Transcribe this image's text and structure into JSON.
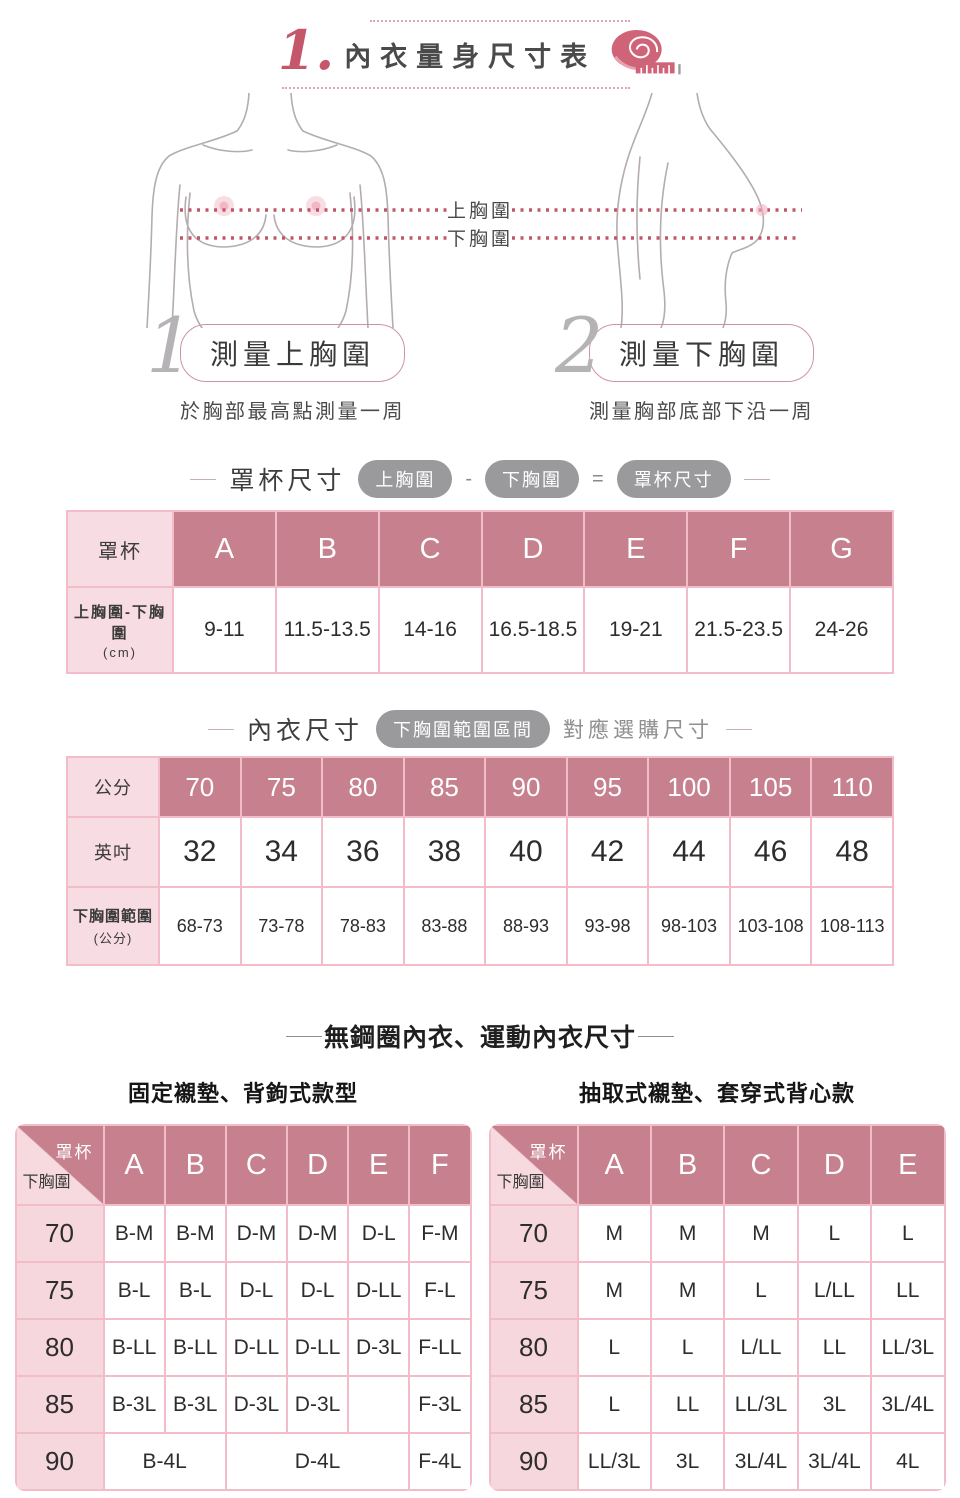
{
  "colors": {
    "mauve": "#c7808e",
    "light_pink": "#f8dce3",
    "band_pink": "#f7d7de",
    "border_pink": "#f2bdc8",
    "accent_red": "#c4586a",
    "pill_gray": "#9a999c",
    "dot_line_red": "#c25669",
    "sketch_gray": "#b4acb0"
  },
  "header": {
    "number": "1.",
    "title": "內衣量身尺寸表",
    "icon": "measuring-tape-icon"
  },
  "figure": {
    "upper_label": "上胸圍",
    "under_label": "下胸圍"
  },
  "steps": [
    {
      "number": "1",
      "title": "測量上胸圍",
      "desc": "於胸部最高點測量一周"
    },
    {
      "number": "2",
      "title": "測量下胸圍",
      "desc": "測量胸部底部下沿一周"
    }
  ],
  "cup_section": {
    "label": "罩杯尺寸",
    "pill_upper": "上胸圍",
    "minus": "-",
    "pill_under": "下胸圍",
    "equals": "=",
    "pill_result": "罩杯尺寸"
  },
  "cup_table": {
    "corner": "罩杯",
    "range_label": "上胸圍-下胸圍",
    "range_unit": "(cm)",
    "columns": [
      "A",
      "B",
      "C",
      "D",
      "E",
      "F",
      "G"
    ],
    "values": [
      "9-11",
      "11.5-13.5",
      "14-16",
      "16.5-18.5",
      "19-21",
      "21.5-23.5",
      "24-26"
    ]
  },
  "size_section": {
    "label": "內衣尺寸",
    "pill": "下胸圍範圍區間",
    "suffix": "對應選購尺寸"
  },
  "size_table": {
    "cm_label": "公分",
    "cm": [
      "70",
      "75",
      "80",
      "85",
      "90",
      "95",
      "100",
      "105",
      "110"
    ],
    "inch_label": "英吋",
    "inch": [
      "32",
      "34",
      "36",
      "38",
      "40",
      "42",
      "44",
      "46",
      "48"
    ],
    "range_label": "下胸圍範圍",
    "range_unit": "(公分)",
    "ranges": [
      "68-73",
      "73-78",
      "78-83",
      "83-88",
      "88-93",
      "93-98",
      "98-103",
      "103-108",
      "108-113"
    ]
  },
  "bottom": {
    "heading": "無鋼圈內衣、運動內衣尺寸",
    "tables": [
      {
        "caption": "固定襯墊、背鉤式款型",
        "corner_top": "罩杯",
        "corner_bottom": "下胸圍",
        "columns": [
          "A",
          "B",
          "C",
          "D",
          "E",
          "F"
        ],
        "rows": [
          {
            "band": "70",
            "cells": [
              {
                "t": "B-M"
              },
              {
                "t": "B-M"
              },
              {
                "t": "D-M"
              },
              {
                "t": "D-M"
              },
              {
                "t": "D-L"
              },
              {
                "t": "F-M"
              }
            ]
          },
          {
            "band": "75",
            "cells": [
              {
                "t": "B-L"
              },
              {
                "t": "B-L"
              },
              {
                "t": "D-L"
              },
              {
                "t": "D-L"
              },
              {
                "t": "D-LL"
              },
              {
                "t": "F-L"
              }
            ]
          },
          {
            "band": "80",
            "cells": [
              {
                "t": "B-LL"
              },
              {
                "t": "B-LL"
              },
              {
                "t": "D-LL"
              },
              {
                "t": "D-LL"
              },
              {
                "t": "D-3L"
              },
              {
                "t": "F-LL"
              }
            ]
          },
          {
            "band": "85",
            "cells": [
              {
                "t": "B-3L"
              },
              {
                "t": "B-3L"
              },
              {
                "t": "D-3L"
              },
              {
                "t": "D-3L"
              },
              {
                "t": ""
              },
              {
                "t": "F-3L"
              }
            ]
          },
          {
            "band": "90",
            "cells": [
              {
                "t": "B-4L",
                "span": 2
              },
              {
                "t": "D-4L",
                "span": 3
              },
              {
                "t": "F-4L"
              }
            ]
          }
        ]
      },
      {
        "caption": "抽取式襯墊、套穿式背心款",
        "corner_top": "罩杯",
        "corner_bottom": "下胸圍",
        "columns": [
          "A",
          "B",
          "C",
          "D",
          "E"
        ],
        "rows": [
          {
            "band": "70",
            "cells": [
              {
                "t": "M"
              },
              {
                "t": "M"
              },
              {
                "t": "M"
              },
              {
                "t": "L"
              },
              {
                "t": "L"
              }
            ]
          },
          {
            "band": "75",
            "cells": [
              {
                "t": "M"
              },
              {
                "t": "M"
              },
              {
                "t": "L"
              },
              {
                "t": "L/LL"
              },
              {
                "t": "LL"
              }
            ]
          },
          {
            "band": "80",
            "cells": [
              {
                "t": "L"
              },
              {
                "t": "L"
              },
              {
                "t": "L/LL"
              },
              {
                "t": "LL"
              },
              {
                "t": "LL/3L"
              }
            ]
          },
          {
            "band": "85",
            "cells": [
              {
                "t": "L"
              },
              {
                "t": "LL"
              },
              {
                "t": "LL/3L"
              },
              {
                "t": "3L"
              },
              {
                "t": "3L/4L"
              }
            ]
          },
          {
            "band": "90",
            "cells": [
              {
                "t": "LL/3L"
              },
              {
                "t": "3L"
              },
              {
                "t": "3L/4L"
              },
              {
                "t": "3L/4L"
              },
              {
                "t": "4L"
              }
            ]
          }
        ]
      }
    ]
  }
}
